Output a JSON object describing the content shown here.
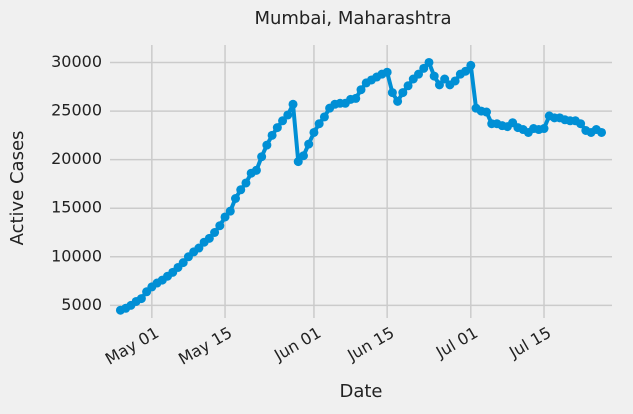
{
  "chart_data": {
    "type": "line",
    "title": "Mumbai, Maharashtra",
    "x_label": "Date",
    "y_label": "Active Cases",
    "x": [
      "04-25",
      "04-26",
      "04-27",
      "04-28",
      "04-29",
      "04-30",
      "05-01",
      "05-02",
      "05-03",
      "05-04",
      "05-05",
      "05-06",
      "05-07",
      "05-08",
      "05-09",
      "05-10",
      "05-11",
      "05-12",
      "05-13",
      "05-14",
      "05-15",
      "05-16",
      "05-17",
      "05-18",
      "05-19",
      "05-20",
      "05-21",
      "05-22",
      "05-23",
      "05-24",
      "05-25",
      "05-26",
      "05-27",
      "05-28",
      "05-29",
      "05-30",
      "05-31",
      "06-01",
      "06-02",
      "06-03",
      "06-04",
      "06-05",
      "06-06",
      "06-07",
      "06-08",
      "06-09",
      "06-10",
      "06-11",
      "06-12",
      "06-13",
      "06-14",
      "06-15",
      "06-16",
      "06-17",
      "06-18",
      "06-19",
      "06-20",
      "06-21",
      "06-22",
      "06-23",
      "06-24",
      "06-25",
      "06-26",
      "06-27",
      "06-28",
      "06-29",
      "06-30",
      "07-01",
      "07-02",
      "07-03",
      "07-04",
      "07-05",
      "07-06",
      "07-07",
      "07-08",
      "07-09",
      "07-10",
      "07-11",
      "07-12",
      "07-13",
      "07-14",
      "07-15",
      "07-16",
      "07-17",
      "07-18",
      "07-19",
      "07-20",
      "07-21",
      "07-22",
      "07-23",
      "07-24",
      "07-25",
      "07-26"
    ],
    "series": [
      {
        "name": "Active Cases",
        "color": "#008fd5",
        "values": [
          4500,
          4700,
          5000,
          5400,
          5700,
          6400,
          6900,
          7300,
          7600,
          8000,
          8400,
          8900,
          9400,
          10000,
          10500,
          10900,
          11500,
          11900,
          12500,
          13200,
          14100,
          14700,
          16000,
          16900,
          17600,
          18600,
          18900,
          20300,
          21500,
          22500,
          23300,
          24000,
          24600,
          25700,
          19800,
          20400,
          21600,
          22800,
          23700,
          24400,
          25300,
          25700,
          25800,
          25800,
          26200,
          26300,
          27200,
          27900,
          28200,
          28500,
          28800,
          29000,
          26900,
          26000,
          26900,
          27600,
          28300,
          28800,
          29400,
          30000,
          28600,
          27700,
          28300,
          27700,
          28100,
          28800,
          29100,
          29700,
          25300,
          25000,
          24900,
          23700,
          23700,
          23500,
          23400,
          23800,
          23300,
          23100,
          22800,
          23200,
          23100,
          23200,
          24500,
          24300,
          24300,
          24100,
          24000,
          24000,
          23700,
          23000,
          22800,
          23100,
          22800
        ]
      }
    ],
    "xlim": [
      "04-23",
      "07-28"
    ],
    "xticks": [
      {
        "value": "05-01",
        "label": "May 01"
      },
      {
        "value": "05-15",
        "label": "May 15"
      },
      {
        "value": "06-01",
        "label": "Jun 01"
      },
      {
        "value": "06-15",
        "label": "Jun 15"
      },
      {
        "value": "07-01",
        "label": "Jul 01"
      },
      {
        "value": "07-15",
        "label": "Jul 15"
      }
    ],
    "ylim": [
      3700,
      31800
    ],
    "yticks": [
      5000,
      10000,
      15000,
      20000,
      25000,
      30000
    ],
    "grid": true
  }
}
